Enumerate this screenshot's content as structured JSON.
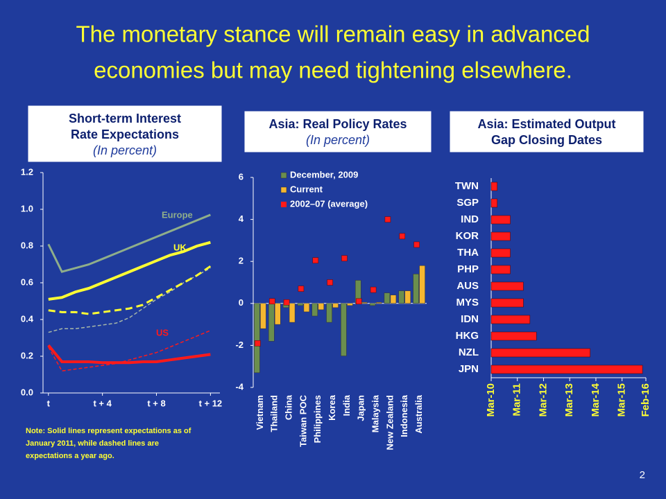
{
  "title": [
    "The monetary stance will remain easy in advanced",
    "economies but may need tightening elsewhere."
  ],
  "note": [
    "Note: Solid lines  represent expectations as of",
    "January 2011,  while dashed lines are",
    "expectations a year ago."
  ],
  "page_number": "2",
  "chart_data": [
    {
      "type": "line",
      "title": [
        "Short-term Interest",
        "Rate Expectations"
      ],
      "subtitle": "(In percent)",
      "x": [
        0,
        1,
        2,
        3,
        4,
        5,
        6,
        7,
        8,
        9,
        10,
        11,
        12
      ],
      "xlim": [
        -0.4,
        12.7
      ],
      "xticks": [
        {
          "value": 0,
          "label": "t"
        },
        {
          "value": 4,
          "label": "t + 4"
        },
        {
          "value": 8,
          "label": "t + 8"
        },
        {
          "value": 12,
          "label": "t + 12"
        }
      ],
      "ylim": [
        0,
        1.2
      ],
      "yticks": [
        {
          "value": 0,
          "label": "0.0"
        },
        0.2,
        0.4,
        0.6,
        0.8,
        {
          "value": 1,
          "label": "1.0"
        },
        1.2
      ],
      "series": [
        {
          "name": "Europe",
          "color": "#8fae8a",
          "dash": false,
          "values": [
            0.81,
            0.66,
            0.68,
            0.7,
            0.73,
            0.76,
            0.79,
            0.82,
            0.85,
            0.88,
            0.91,
            0.94,
            0.97
          ]
        },
        {
          "name": "UK",
          "color": "#ffff33",
          "dash": false,
          "values": [
            0.51,
            0.52,
            0.55,
            0.57,
            0.6,
            0.63,
            0.66,
            0.69,
            0.72,
            0.75,
            0.77,
            0.8,
            0.82
          ]
        },
        {
          "name": "US",
          "color": "#ff1a1a",
          "dash": false,
          "values": [
            0.26,
            0.17,
            0.17,
            0.17,
            0.165,
            0.165,
            0.165,
            0.17,
            0.17,
            0.18,
            0.19,
            0.2,
            0.21
          ]
        },
        {
          "color": "#a8b8a8",
          "dash": true,
          "values": [
            0.33,
            0.35,
            0.35,
            0.36,
            0.37,
            0.38,
            0.41,
            0.46,
            0.51,
            0.55,
            0.6,
            0.64,
            0.68
          ]
        },
        {
          "color": "#ffff33",
          "dash": true,
          "values": [
            0.45,
            0.44,
            0.44,
            0.43,
            0.44,
            0.45,
            0.46,
            0.48,
            0.52,
            0.56,
            0.6,
            0.64,
            0.69
          ]
        },
        {
          "color": "#ff1a1a",
          "dash": true,
          "values": [
            0.25,
            0.12,
            0.13,
            0.14,
            0.15,
            0.16,
            0.18,
            0.2,
            0.22,
            0.25,
            0.28,
            0.31,
            0.34
          ]
        }
      ]
    },
    {
      "type": "bar",
      "title": [
        "Asia: Real Policy Rates"
      ],
      "subtitle": "(In percent)",
      "categories": [
        "Vietnam",
        "Thailand",
        "China",
        "Taiwan POC",
        "Philippines",
        "Korea",
        "India",
        "Japan",
        "Malaysia",
        "New Zealand",
        "Indonesia",
        "Australia"
      ],
      "ylim": [
        -4,
        6
      ],
      "yticks": [
        -4,
        -2,
        0,
        2,
        4,
        6
      ],
      "series": [
        {
          "name": "December, 2009",
          "color": "#6b8e4e",
          "values": [
            -3.3,
            -1.8,
            -0.2,
            -0.1,
            -0.6,
            -0.9,
            -2.5,
            1.1,
            -0.1,
            0.5,
            0.6,
            1.4
          ]
        },
        {
          "name": "Current",
          "color": "#f5b731",
          "values": [
            -1.2,
            -1.0,
            -0.9,
            -0.4,
            -0.3,
            -0.2,
            -0.1,
            0.05,
            0.05,
            0.4,
            0.6,
            1.8
          ]
        },
        {
          "name": "2002–07 (average)",
          "color": "#ff1a1a",
          "marker": "square",
          "values": [
            -1.9,
            0.1,
            0.05,
            0.7,
            2.05,
            1.0,
            2.15,
            0.1,
            0.65,
            4.0,
            3.2,
            2.8
          ]
        }
      ]
    },
    {
      "type": "hbar",
      "title": [
        "Asia: Estimated Output",
        "Gap Closing Dates"
      ],
      "categories": [
        "TWN",
        "SGP",
        "IND",
        "KOR",
        "THA",
        "PHP",
        "AUS",
        "MYS",
        "IDN",
        "HKG",
        "NZL",
        "JPN"
      ],
      "values": [
        2010.4,
        2010.4,
        2010.9,
        2010.9,
        2010.9,
        2010.9,
        2011.4,
        2011.4,
        2011.65,
        2011.9,
        2013.95,
        2015.95
      ],
      "color": "#ff1a1a",
      "xlim": [
        2010.17,
        2016.08
      ],
      "xticks": [
        {
          "value": 2010.17,
          "label": "Mar-10"
        },
        {
          "value": 2011.17,
          "label": "Mar-11"
        },
        {
          "value": 2012.17,
          "label": "Mar-12"
        },
        {
          "value": 2013.17,
          "label": "Mar-13"
        },
        {
          "value": 2014.17,
          "label": "Mar-14"
        },
        {
          "value": 2015.17,
          "label": "Mar-15"
        },
        {
          "value": 2016.08,
          "label": "Feb-16"
        }
      ]
    }
  ]
}
